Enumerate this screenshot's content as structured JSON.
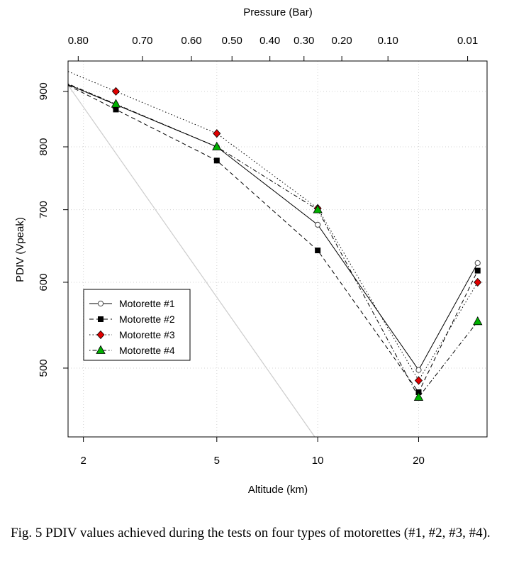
{
  "chart_data": {
    "type": "line",
    "xlabel": "Altitude (km)",
    "ylabel": "PDIV (Vpeak)",
    "top_axis_label": "Pressure (Bar)",
    "x_scale": "log",
    "y_scale": "log",
    "xlim": [
      1.8,
      32
    ],
    "ylim": [
      432,
      960
    ],
    "x_ticks": [
      2,
      5,
      10,
      20
    ],
    "y_ticks": [
      500,
      600,
      700,
      800,
      900
    ],
    "top_ticks": [
      {
        "label": "0.80",
        "altitude_km": 1.93
      },
      {
        "label": "0.70",
        "altitude_km": 3.0
      },
      {
        "label": "0.60",
        "altitude_km": 4.2
      },
      {
        "label": "0.50",
        "altitude_km": 5.55
      },
      {
        "label": "0.40",
        "altitude_km": 7.2
      },
      {
        "label": "0.30",
        "altitude_km": 9.1
      },
      {
        "label": "0.20",
        "altitude_km": 11.8
      },
      {
        "label": "0.10",
        "altitude_km": 16.2
      },
      {
        "label": "0.01",
        "altitude_km": 28.0
      }
    ],
    "x": [
      2.5,
      5,
      10,
      20,
      30
    ],
    "series": [
      {
        "name": "Motorette #1",
        "marker": "open-circle",
        "line": "solid",
        "color": "#000000",
        "values": [
          875,
          800,
          678,
          498,
          625
        ]
      },
      {
        "name": "Motorette #2",
        "marker": "filled-square",
        "line": "dashed",
        "color": "#000000",
        "values": [
          866,
          777,
          642,
          475,
          615
        ]
      },
      {
        "name": "Motorette #3",
        "marker": "red-diamond",
        "line": "dotted",
        "color": "#e00000",
        "values": [
          900,
          823,
          702,
          487,
          600
        ]
      },
      {
        "name": "Motorette #4",
        "marker": "green-triangle",
        "line": "dotdash",
        "color": "#00b000",
        "values": [
          876,
          800,
          700,
          470,
          552
        ]
      }
    ],
    "legend_position": "lower-left",
    "grid": true
  },
  "caption": "Fig. 5 PDIV values achieved during the tests on four types of motorettes (#1, #2, #3, #4)."
}
